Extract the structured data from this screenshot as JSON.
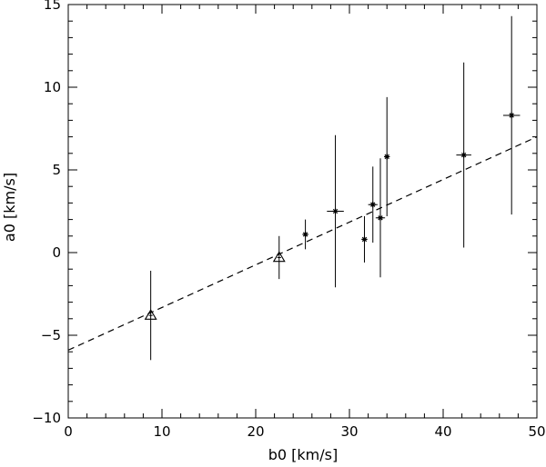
{
  "chart_data": {
    "type": "scatter",
    "title": "",
    "xlabel": "b0  [km/s]",
    "ylabel": "a0  [km/s]",
    "xlim": [
      0,
      50
    ],
    "ylim": [
      -10,
      15
    ],
    "x_ticks": [
      0,
      10,
      20,
      30,
      40,
      50
    ],
    "y_ticks": [
      -10,
      -5,
      0,
      5,
      10,
      15
    ],
    "grid": false,
    "series": [
      {
        "marker": "asterisk",
        "points": [
          {
            "x": 25.3,
            "y": 1.1,
            "x_err": 0.3,
            "y_err": 0.9
          },
          {
            "x": 28.5,
            "y": 2.5,
            "x_err": 0.9,
            "y_err": 4.6
          },
          {
            "x": 31.6,
            "y": 0.8,
            "x_err": 0.3,
            "y_err": 1.4
          },
          {
            "x": 32.5,
            "y": 2.9,
            "x_err": 0.5,
            "y_err": 2.3
          },
          {
            "x": 33.3,
            "y": 2.1,
            "x_err": 0.5,
            "y_err": 3.6
          },
          {
            "x": 34.0,
            "y": 5.8,
            "x_err": 0.2,
            "y_err": 3.6
          },
          {
            "x": 42.2,
            "y": 5.9,
            "x_err": 0.8,
            "y_err": 5.6
          },
          {
            "x": 47.3,
            "y": 8.3,
            "x_err": 0.9,
            "y_err": 6.0
          }
        ]
      },
      {
        "marker": "triangle",
        "points": [
          {
            "x": 8.8,
            "y": -3.8,
            "x_err": 0.2,
            "y_err": 2.7
          },
          {
            "x": 22.5,
            "y": -0.3,
            "x_err": 0.2,
            "y_err": 1.3
          }
        ]
      }
    ],
    "fit_line": {
      "style": "dashed",
      "x": [
        0,
        50
      ],
      "y": [
        -5.9,
        7.0
      ]
    }
  }
}
